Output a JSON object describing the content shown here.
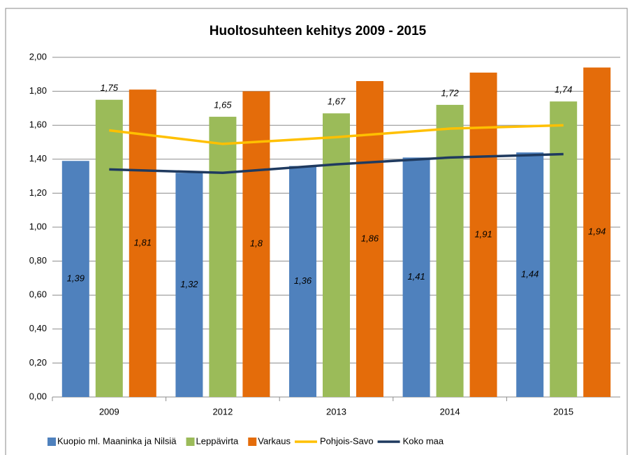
{
  "chart_data": {
    "type": "bar",
    "title": "Huoltosuhteen kehitys 2009 - 2015",
    "categories": [
      "2009",
      "2012",
      "2013",
      "2014",
      "2015"
    ],
    "series": [
      {
        "name": "Kuopio ml. Maaninka ja Nilsiä",
        "type": "bar",
        "color": "#4f81bd",
        "values": [
          1.39,
          1.32,
          1.36,
          1.41,
          1.44
        ],
        "value_labels": [
          "1,39",
          "1,32",
          "1,36",
          "1,41",
          "1,44"
        ]
      },
      {
        "name": "Leppävirta",
        "type": "bar",
        "color": "#9bbb59",
        "values": [
          1.75,
          1.65,
          1.67,
          1.72,
          1.74
        ],
        "value_labels": [
          "1,75",
          "1,65",
          "1,67",
          "1,72",
          "1,74"
        ]
      },
      {
        "name": "Varkaus",
        "type": "bar",
        "color": "#e46c0a",
        "values": [
          1.81,
          1.8,
          1.86,
          1.91,
          1.94
        ],
        "value_labels": [
          "1,81",
          "1,8",
          "1,86",
          "1,91",
          "1,94"
        ]
      },
      {
        "name": "Pohjois-Savo",
        "type": "line",
        "color": "#ffc000",
        "values": [
          1.57,
          1.49,
          1.53,
          1.58,
          1.6
        ]
      },
      {
        "name": "Koko maa",
        "type": "line",
        "color": "#1f3a5f",
        "values": [
          1.34,
          1.32,
          1.37,
          1.41,
          1.43
        ]
      }
    ],
    "ylim": [
      0,
      2
    ],
    "yticks": [
      {
        "value": 0,
        "label": "0,00"
      },
      {
        "value": 0.2,
        "label": "0,20"
      },
      {
        "value": 0.4,
        "label": "0,40"
      },
      {
        "value": 0.6,
        "label": "0,60"
      },
      {
        "value": 0.8,
        "label": "0,80"
      },
      {
        "value": 1,
        "label": "1,00"
      },
      {
        "value": 1.2,
        "label": "1,20"
      },
      {
        "value": 1.4,
        "label": "1,40"
      },
      {
        "value": 1.6,
        "label": "1,60"
      },
      {
        "value": 1.8,
        "label": "1,80"
      },
      {
        "value": 2,
        "label": "2,00"
      }
    ],
    "grid": true,
    "legend": "bottom"
  }
}
